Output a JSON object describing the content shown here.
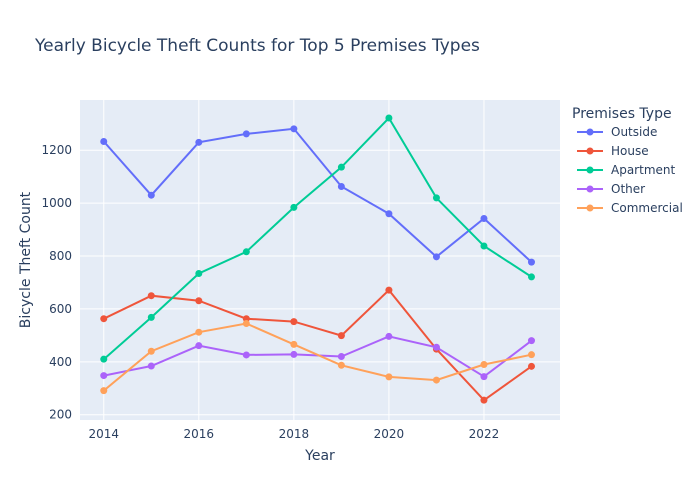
{
  "chart_data": {
    "type": "line",
    "title": "Yearly Bicycle Theft Counts for Top 5 Premises Types",
    "xlabel": "Year",
    "ylabel": "Bicycle Theft Count",
    "x": [
      2014,
      2015,
      2016,
      2017,
      2018,
      2019,
      2020,
      2021,
      2022,
      2023
    ],
    "xlim": [
      2013.5,
      2023.6
    ],
    "ylim": [
      180,
      1390
    ],
    "xticks": [
      2014,
      2016,
      2018,
      2020,
      2022
    ],
    "yticks": [
      200,
      400,
      600,
      800,
      1000,
      1200
    ],
    "grid": true,
    "legend": {
      "title": "Premises Type",
      "position": "right"
    },
    "series": [
      {
        "name": "Outside",
        "color": "#636efa",
        "values": [
          1233,
          1030,
          1230,
          1262,
          1281,
          1063,
          960,
          797,
          942,
          777
        ]
      },
      {
        "name": "House",
        "color": "#EF553B",
        "values": [
          563,
          650,
          631,
          563,
          552,
          499,
          671,
          448,
          255,
          383
        ]
      },
      {
        "name": "Apartment",
        "color": "#00cc96",
        "values": [
          410,
          568,
          734,
          816,
          984,
          1136,
          1322,
          1020,
          838,
          721
        ]
      },
      {
        "name": "Other",
        "color": "#ab63fa",
        "values": [
          348,
          384,
          461,
          426,
          428,
          420,
          496,
          455,
          344,
          480
        ]
      },
      {
        "name": "Commercial",
        "color": "#FFA15A",
        "values": [
          291,
          440,
          512,
          545,
          466,
          387,
          343,
          331,
          390,
          427
        ]
      }
    ]
  }
}
